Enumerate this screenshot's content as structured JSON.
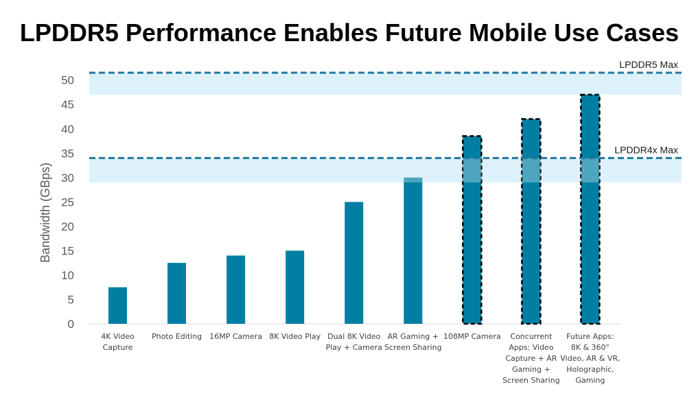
{
  "chart_data": {
    "type": "bar",
    "title": "LPDDR5 Performance Enables Future Mobile Use Cases",
    "xlabel": "",
    "ylabel": "Bandwidth (GBps)",
    "ylim": [
      0,
      52
    ],
    "yticks": [
      0,
      5,
      10,
      15,
      20,
      25,
      30,
      35,
      40,
      45,
      50
    ],
    "grid": false,
    "categories": [
      [
        "4K Video",
        "Capture"
      ],
      [
        "Photo Editing"
      ],
      [
        "16MP Camera"
      ],
      [
        "8K Video Play"
      ],
      [
        "Dual 8K Video",
        "Play + Camera"
      ],
      [
        "AR Gaming +",
        "Screen Sharing"
      ],
      [
        "108MP Camera"
      ],
      [
        "Concurrent",
        "Apps: Video",
        "Capture + AR",
        "Gaming +",
        "Screen Sharing"
      ],
      [
        "Future Apps:",
        "8K & 360°",
        "Video, AR & VR,",
        "Holographic,",
        "Gaming"
      ]
    ],
    "values": [
      7.5,
      12.5,
      14,
      15,
      25,
      30,
      38.5,
      42,
      47
    ],
    "future_use_case": [
      false,
      false,
      false,
      false,
      false,
      false,
      true,
      true,
      true
    ],
    "reference_lines": [
      {
        "label": "LPDDR4x Max",
        "value": 34
      },
      {
        "label": "LPDDR5 Max",
        "value": 51.5
      }
    ],
    "shaded_bands": [
      [
        29,
        34
      ],
      [
        47,
        51.5
      ]
    ],
    "colors": {
      "bar": "#007FA3",
      "reference_line": "#1F77A0",
      "band": "#DDF1FB",
      "bar_outline": "#000000"
    }
  }
}
